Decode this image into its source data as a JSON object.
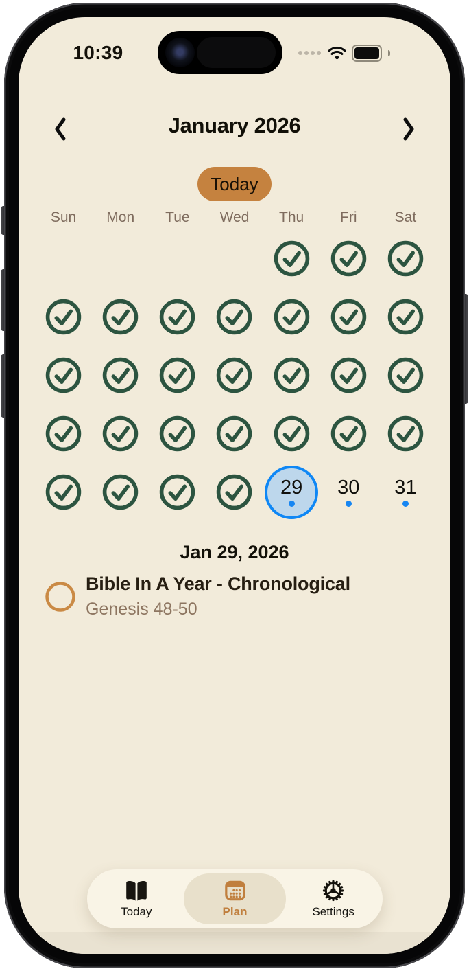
{
  "status_bar": {
    "time": "10:39"
  },
  "calendar_header": {
    "title": "January 2026",
    "today_button_label": "Today"
  },
  "weekdays": [
    "Sun",
    "Mon",
    "Tue",
    "Wed",
    "Thu",
    "Fri",
    "Sat"
  ],
  "calendar": {
    "weeks": [
      [
        null,
        null,
        null,
        null,
        {
          "kind": "check"
        },
        {
          "kind": "check"
        },
        {
          "kind": "check"
        }
      ],
      [
        {
          "kind": "check"
        },
        {
          "kind": "check"
        },
        {
          "kind": "check"
        },
        {
          "kind": "check"
        },
        {
          "kind": "check"
        },
        {
          "kind": "check"
        },
        {
          "kind": "check"
        }
      ],
      [
        {
          "kind": "check"
        },
        {
          "kind": "check"
        },
        {
          "kind": "check"
        },
        {
          "kind": "check"
        },
        {
          "kind": "check"
        },
        {
          "kind": "check"
        },
        {
          "kind": "check"
        }
      ],
      [
        {
          "kind": "check"
        },
        {
          "kind": "check"
        },
        {
          "kind": "check"
        },
        {
          "kind": "check"
        },
        {
          "kind": "check"
        },
        {
          "kind": "check"
        },
        {
          "kind": "check"
        }
      ],
      [
        {
          "kind": "check"
        },
        {
          "kind": "check"
        },
        {
          "kind": "check"
        },
        {
          "kind": "check"
        },
        {
          "kind": "selected",
          "label": "29",
          "dot": true
        },
        {
          "kind": "upcoming",
          "label": "30",
          "dot": true
        },
        {
          "kind": "upcoming",
          "label": "31",
          "dot": true
        }
      ]
    ]
  },
  "schedule": {
    "date_heading": "Jan 29, 2026",
    "items": [
      {
        "title": "Bible In A Year - Chronological",
        "subtitle": "Genesis 48-50",
        "completed": false
      }
    ]
  },
  "tab_bar": {
    "active": "Plan",
    "tabs": [
      {
        "label": "Today",
        "icon": "book-icon"
      },
      {
        "label": "Plan",
        "icon": "calendar-icon"
      },
      {
        "label": "Settings",
        "icon": "gear-icon"
      }
    ]
  },
  "colors": {
    "screen_background": "#f2ebda",
    "accent_orange": "#c5823f",
    "check_green": "#2c5440",
    "selected_border_blue": "#0f87f5",
    "selected_fill_blue": "#bdd7ec",
    "dot_blue": "#1786f2",
    "tab_bar_background": "#f9f4e6",
    "active_tab_pill": "#e8e0cb"
  }
}
